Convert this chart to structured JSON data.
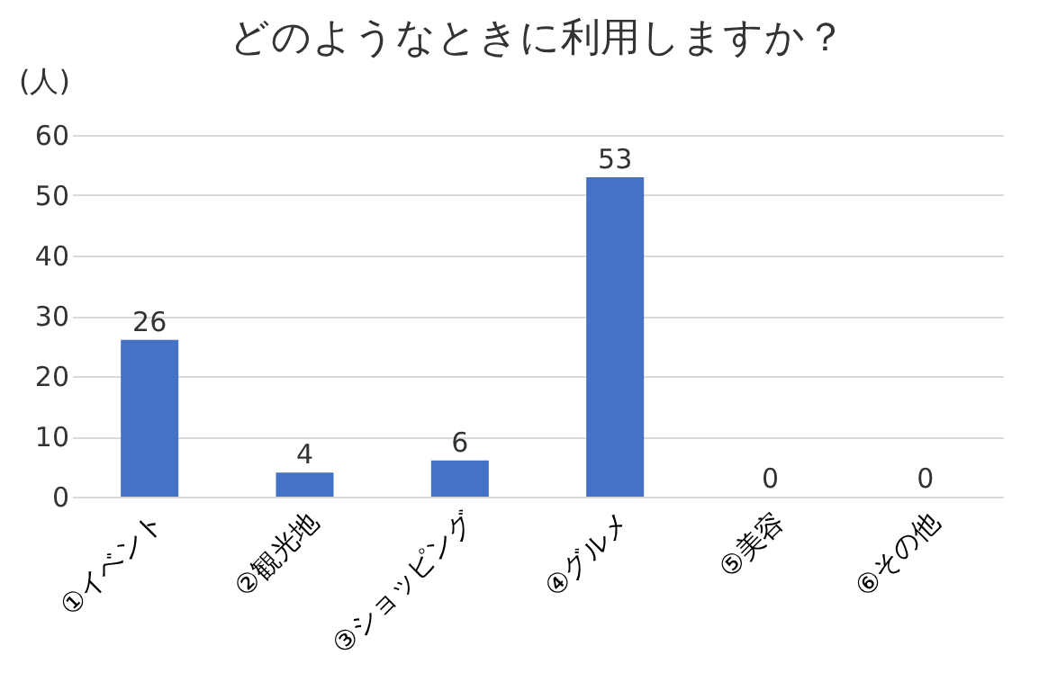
{
  "chart_data": {
    "type": "bar",
    "title": "どのようなときに利用しますか？",
    "ylabel": "(人)",
    "categories": [
      "①イベント",
      "②観光地",
      "③ショッピング",
      "④グルメ",
      "⑤美容",
      "⑥その他"
    ],
    "values": [
      26,
      4,
      6,
      53,
      0,
      0
    ],
    "color": "#4472c4",
    "ylim": [
      0,
      60
    ],
    "yticks": [
      0,
      10,
      20,
      30,
      40,
      50,
      60
    ],
    "grid": "y",
    "data_labels": true
  }
}
